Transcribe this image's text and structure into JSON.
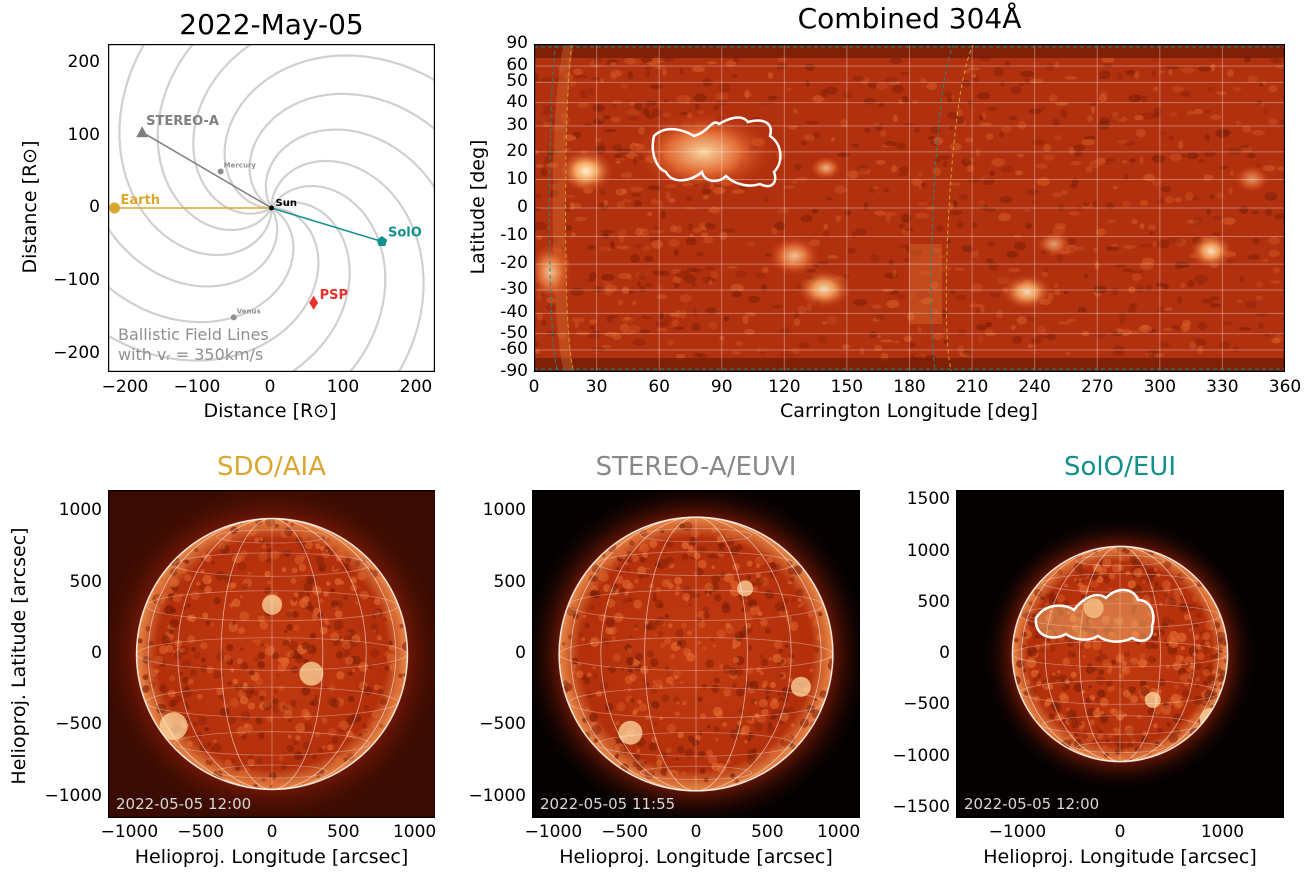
{
  "orbit_panel": {
    "title": "2022-May-05",
    "xlabel": "Distance [R⊙]",
    "ylabel": "Distance [R⊙]",
    "xticks": [
      "−200",
      "−100",
      "0",
      "100",
      "200"
    ],
    "yticks": [
      "200",
      "100",
      "0",
      "−100",
      "−200"
    ],
    "annotation_line1": "Ballistic Field Lines",
    "annotation_line2": "with vᵣ = 350km/s",
    "bodies": [
      {
        "name": "STEREO-A",
        "x": -178,
        "y": 104,
        "color": "#808080",
        "marker": "triangle"
      },
      {
        "name": "Mercury",
        "x": -70,
        "y": 50,
        "color": "#909090",
        "marker": "circle-small"
      },
      {
        "name": "Earth",
        "x": -216,
        "y": 0,
        "color": "#dca731",
        "marker": "circle"
      },
      {
        "name": "Sun",
        "x": 0,
        "y": 0,
        "color": "#000000",
        "marker": "dot"
      },
      {
        "name": "SolO",
        "x": 152,
        "y": -46,
        "color": "#12908e",
        "marker": "pentagon"
      },
      {
        "name": "PSP",
        "x": 58,
        "y": -130,
        "color": "#e8302d",
        "marker": "diamond"
      },
      {
        "name": "Venus",
        "x": -52,
        "y": -150,
        "color": "#909090",
        "marker": "circle-small"
      }
    ]
  },
  "carrington_panel": {
    "title": "Combined 304Å",
    "xlabel": "Carrington Longitude [deg]",
    "ylabel": "Latitude [deg]",
    "xticks": [
      "0",
      "30",
      "60",
      "90",
      "120",
      "150",
      "180",
      "210",
      "240",
      "270",
      "300",
      "330",
      "360"
    ],
    "yticks": [
      "90",
      "60",
      "50",
      "40",
      "30",
      "20",
      "10",
      "0",
      "-10",
      "-20",
      "-30",
      "-40",
      "-50",
      "-60",
      "-90"
    ]
  },
  "disk_panels": [
    {
      "title": "SDO/AIA",
      "title_color": "#dca731",
      "timestamp": "2022-05-05 12:00",
      "xticks": [
        "−1000",
        "−500",
        "0",
        "500",
        "1000"
      ],
      "yticks": [
        "1000",
        "500",
        "0",
        "−500",
        "−1000"
      ],
      "xlabel": "Helioproj. Longitude [arcsec]",
      "ylabel": "Helioproj. Latitude [arcsec]"
    },
    {
      "title": "STEREO-A/EUVI",
      "title_color": "#888888",
      "timestamp": "2022-05-05 11:55",
      "xticks": [
        "−1000",
        "−500",
        "0",
        "500",
        "1000"
      ],
      "yticks": [
        "1000",
        "500",
        "0",
        "−500",
        "−1000"
      ],
      "xlabel": "Helioproj. Longitude [arcsec]",
      "ylabel": ""
    },
    {
      "title": "SolO/EUI",
      "title_color": "#12908e",
      "timestamp": "2022-05-05 12:00",
      "xticks": [
        "−1000",
        "0",
        "1000"
      ],
      "yticks": [
        "1500",
        "1000",
        "500",
        "0",
        "−500",
        "−1000",
        "−1500"
      ],
      "xlabel": "Helioproj. Longitude [arcsec]",
      "ylabel": ""
    }
  ]
}
